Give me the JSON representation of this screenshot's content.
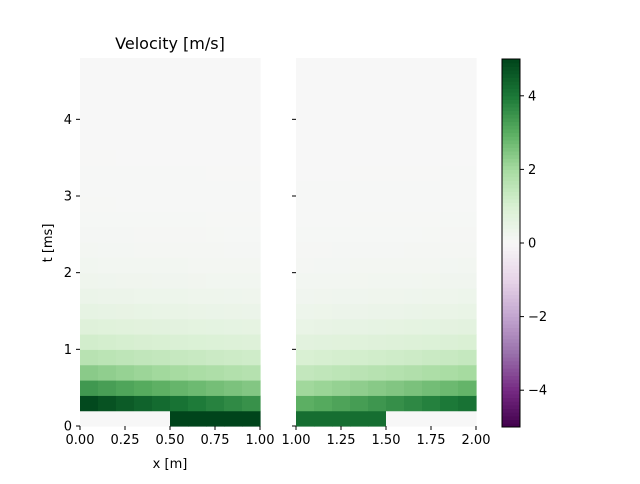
{
  "chart_data": {
    "type": "heatmap",
    "title": "Velocity [m/s]",
    "xlabel": "x [m]",
    "ylabel": "t [ms]",
    "colormap": "PRGn",
    "colors": {
      "low": "#40004b",
      "mid": "#f7f7f7",
      "high": "#00441b"
    },
    "clim": [
      -5,
      5
    ],
    "colorbar_ticks": [
      "4",
      "2",
      "0",
      "−2",
      "−4"
    ],
    "colorbar_tick_values": [
      4,
      2,
      0,
      -2,
      -4
    ],
    "ylim": [
      0,
      4.8
    ],
    "yticks": [
      "0",
      "1",
      "2",
      "3",
      "4"
    ],
    "ytick_values": [
      0,
      1,
      2,
      3,
      4
    ],
    "t_values": [
      0,
      0.2,
      0.4,
      0.6,
      0.8,
      1.0,
      1.2,
      1.4,
      1.6,
      1.8,
      2.0,
      2.2,
      2.4,
      2.6,
      2.8,
      3.0,
      3.2,
      3.4,
      3.6,
      3.8,
      4.0,
      4.2,
      4.4,
      4.6
    ],
    "panels": [
      {
        "xlim": [
          0.0,
          1.0
        ],
        "xticks": [
          "0.00",
          "0.25",
          "0.50",
          "0.75",
          "1.00"
        ],
        "xtick_values": [
          0.0,
          0.25,
          0.5,
          0.75,
          1.0
        ],
        "x_edges": [
          0,
          0.1,
          0.2,
          0.3,
          0.4,
          0.5,
          0.6,
          0.7,
          0.8,
          0.9,
          1.0
        ],
        "base_velocity": 5.0,
        "decay_ms": 0.55,
        "front_start_ms": 0.2,
        "front_slope": -0.2,
        "show_xlabel": true,
        "show_title": true
      },
      {
        "xlim": [
          1.0,
          2.0
        ],
        "xticks": [
          "1.00",
          "1.25",
          "1.50",
          "1.75",
          "2.00"
        ],
        "xtick_values": [
          1.0,
          1.25,
          1.5,
          1.75,
          2.0
        ],
        "x_edges": [
          1.0,
          1.1,
          1.2,
          1.3,
          1.4,
          1.5,
          1.6,
          1.7,
          1.8,
          1.9,
          2.0
        ],
        "base_velocity": 4.2,
        "decay_ms": 0.55,
        "front_start_ms": 0.0,
        "front_slope": 0.2,
        "show_xlabel": false,
        "show_title": false
      }
    ]
  }
}
